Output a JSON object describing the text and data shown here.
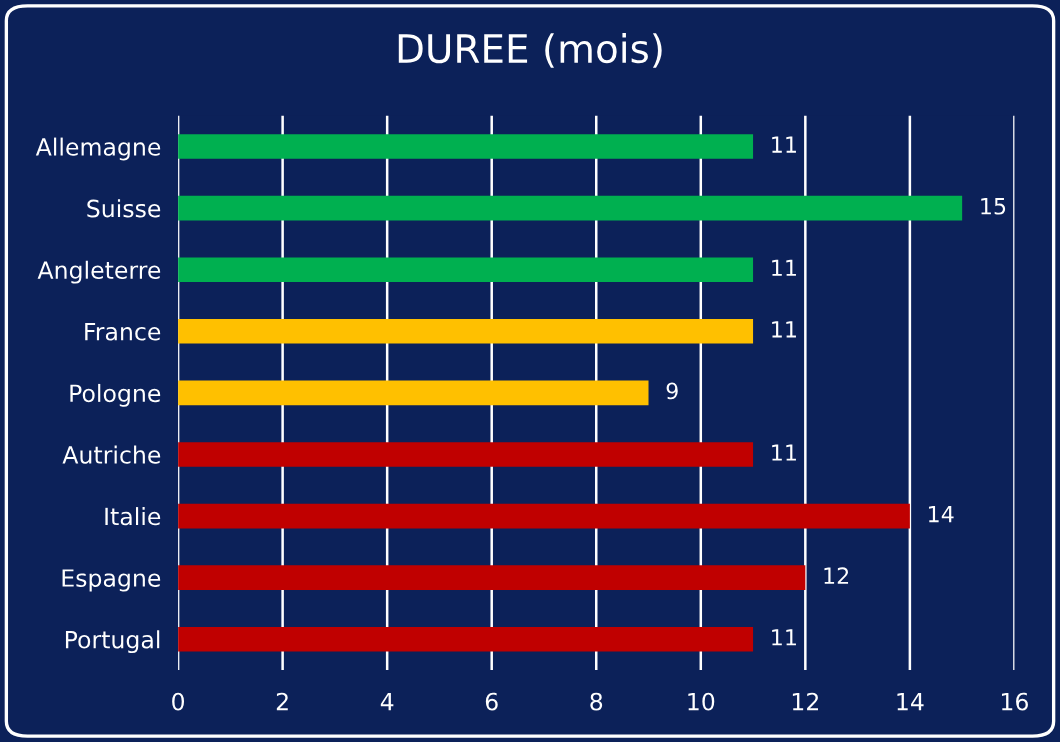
{
  "chart_data": {
    "type": "bar",
    "orientation": "horizontal",
    "title": "DUREE (mois)",
    "categories": [
      "Allemagne",
      "Suisse",
      "Angleterre",
      "France",
      "Pologne",
      "Autriche",
      "Italie",
      "Espagne",
      "Portugal"
    ],
    "values": [
      11,
      15,
      11,
      11,
      9,
      11,
      14,
      12,
      11
    ],
    "colors": [
      "#00b050",
      "#00b050",
      "#00b050",
      "#ffc000",
      "#ffc000",
      "#c00000",
      "#c00000",
      "#c00000",
      "#c00000"
    ],
    "xlim": [
      0,
      16
    ],
    "xticks": [
      0,
      2,
      4,
      6,
      8,
      10,
      12,
      14,
      16
    ],
    "grid": "x",
    "data_labels": true
  }
}
